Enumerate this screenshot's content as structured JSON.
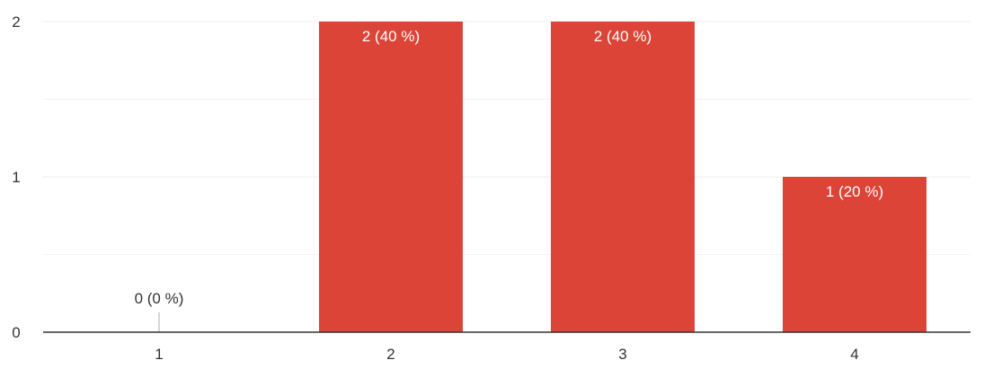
{
  "chart_data": {
    "type": "bar",
    "title": "",
    "xlabel": "",
    "ylabel": "",
    "categories": [
      "1",
      "2",
      "3",
      "4"
    ],
    "series": [
      {
        "values": [
          0,
          2,
          2,
          1
        ],
        "labels": [
          "0 (0 %)",
          "2 (40 %)",
          "2 (40 %)",
          "1 (20 %)"
        ]
      }
    ],
    "ylim": [
      0,
      2
    ],
    "y_ticks": [
      0,
      1,
      2
    ],
    "y_tick_labels": [
      "0",
      "1",
      "2"
    ],
    "grid": true,
    "minor_gridlines": true,
    "legend": "none",
    "colors": {
      "bar": "#db4437",
      "grid": "#ececec",
      "axis": "#333333",
      "zero_marker": "#b0b0b0"
    }
  }
}
